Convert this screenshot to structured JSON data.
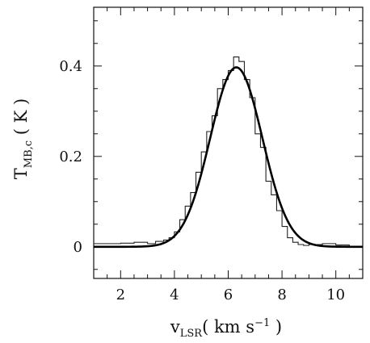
{
  "chart_data": {
    "type": "line",
    "title": "",
    "xlabel": {
      "main": "v",
      "sub": "LSR",
      "units_open": "( km s",
      "units_sup": "−1",
      "units_close": " )"
    },
    "ylabel": {
      "main": "T",
      "sub": "MB,c",
      "units": " ( K )"
    },
    "xlim": [
      1,
      11
    ],
    "ylim": [
      -0.07,
      0.53
    ],
    "x_ticks": [
      2,
      4,
      6,
      8,
      10
    ],
    "x_tick_labels": [
      "2",
      "4",
      "6",
      "8",
      "10"
    ],
    "y_ticks": [
      0,
      0.2,
      0.4
    ],
    "y_tick_labels": [
      "0",
      "0.2",
      "0.4"
    ],
    "grid": false,
    "series": [
      {
        "style": "histogram",
        "x": [
          1.0,
          2.0,
          2.5,
          3.0,
          3.3,
          3.6,
          3.8,
          4.0,
          4.2,
          4.4,
          4.6,
          4.8,
          5.0,
          5.2,
          5.4,
          5.6,
          5.8,
          6.0,
          6.2,
          6.4,
          6.6,
          6.8,
          7.0,
          7.2,
          7.4,
          7.6,
          7.8,
          8.0,
          8.2,
          8.4,
          8.6,
          8.8,
          9.0,
          9.5,
          10.0,
          10.5,
          11.0
        ],
        "y": [
          0.007,
          0.008,
          0.01,
          0.007,
          0.012,
          0.015,
          0.02,
          0.033,
          0.06,
          0.09,
          0.12,
          0.165,
          0.21,
          0.255,
          0.29,
          0.35,
          0.37,
          0.39,
          0.42,
          0.41,
          0.37,
          0.33,
          0.25,
          0.22,
          0.145,
          0.115,
          0.08,
          0.045,
          0.02,
          0.01,
          0.005,
          0.003,
          0.005,
          0.007,
          0.004,
          0.0,
          0.0
        ]
      },
      {
        "style": "gaussian-fit",
        "amplitude": 0.397,
        "center": 6.3,
        "sigma": 0.97
      }
    ]
  }
}
